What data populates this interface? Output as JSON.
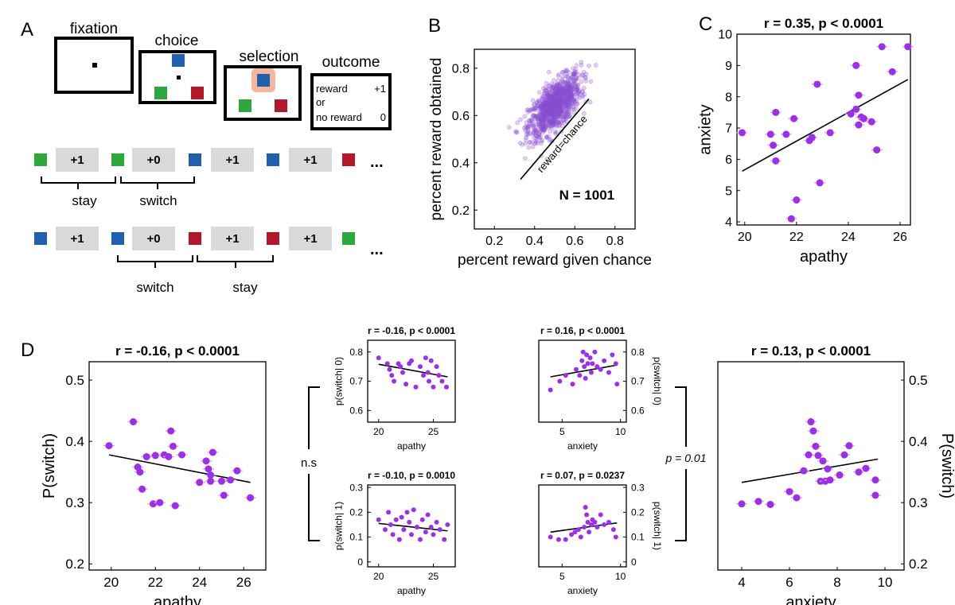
{
  "colors": {
    "point": "#9b30e8",
    "cloud": "#8a4fd0",
    "blue": "#1f5fae",
    "green": "#2ea83a",
    "red": "#b3172a",
    "highlight": "#f4b79c",
    "gray": "#d9d9d9"
  },
  "panelA": {
    "letter": "A",
    "titles": {
      "fixation": "fixation",
      "choice": "choice",
      "selection": "selection",
      "outcome": "outcome"
    },
    "outcome_lines": {
      "reward": "reward",
      "plus1": "+1",
      "or": "or",
      "no_reward": "no reward",
      "zero": "0"
    },
    "seq1": {
      "colors": [
        "green",
        "green",
        "blue",
        "blue",
        "red"
      ],
      "cells": [
        "+1",
        "+0",
        "+1",
        "+1"
      ],
      "braces": [
        "stay",
        "switch"
      ]
    },
    "seq2": {
      "colors": [
        "blue",
        "blue",
        "red",
        "red",
        "green"
      ],
      "cells": [
        "+1",
        "+0",
        "+1",
        "+1"
      ],
      "braces": [
        "switch",
        "stay"
      ]
    },
    "ellipsis": "..."
  },
  "panelB": {
    "letter": "B"
  },
  "panelC": {
    "letter": "C"
  },
  "panelD": {
    "letter": "D",
    "ns": "n.s",
    "p_label": "p = 0.01"
  },
  "chart_data": [
    {
      "id": "B",
      "type": "scatter",
      "title": "",
      "xlabel": "percent reward given chance",
      "ylabel": "percent reward obtained",
      "xlim": [
        0.1,
        0.9
      ],
      "ylim": [
        0.12,
        0.88
      ],
      "xticks": [
        "0.2",
        "0.4",
        "0.6",
        "0.8"
      ],
      "yticks": [
        "0.2",
        "0.4",
        "0.6",
        "0.8"
      ],
      "n_points": 1001,
      "cloud_center": [
        0.5,
        0.64
      ],
      "cloud_sd": [
        0.065,
        0.065
      ],
      "cloud_corr": 0.65,
      "chance_line": [
        [
          0.33,
          0.33
        ],
        [
          0.67,
          0.67
        ]
      ],
      "line_label": "reward=chance",
      "annotation": "N = 1001"
    },
    {
      "id": "C",
      "type": "scatter",
      "title": "r = 0.35, p < 0.0001",
      "xlabel": "apathy",
      "ylabel": "anxiety",
      "xlim": [
        19.7,
        26.4
      ],
      "ylim": [
        3.9,
        10
      ],
      "xticks": [
        "20",
        "22",
        "24",
        "26"
      ],
      "yticks": [
        "4",
        "5",
        "6",
        "7",
        "8",
        "9",
        "10"
      ],
      "points": [
        [
          19.9,
          6.85
        ],
        [
          21.0,
          6.8
        ],
        [
          21.1,
          6.45
        ],
        [
          21.2,
          5.95
        ],
        [
          21.2,
          7.5
        ],
        [
          21.6,
          6.8
        ],
        [
          21.8,
          4.1
        ],
        [
          21.9,
          7.3
        ],
        [
          22.0,
          4.7
        ],
        [
          22.5,
          6.6
        ],
        [
          22.6,
          6.7
        ],
        [
          22.8,
          8.4
        ],
        [
          22.9,
          5.25
        ],
        [
          23.3,
          6.85
        ],
        [
          24.1,
          7.45
        ],
        [
          24.3,
          9.0
        ],
        [
          24.3,
          7.6
        ],
        [
          24.4,
          8.05
        ],
        [
          24.4,
          7.1
        ],
        [
          24.5,
          7.35
        ],
        [
          24.6,
          7.3
        ],
        [
          24.9,
          7.2
        ],
        [
          25.1,
          6.3
        ],
        [
          25.3,
          9.6
        ],
        [
          25.7,
          8.8
        ],
        [
          26.3,
          9.6
        ]
      ],
      "fit": [
        [
          19.9,
          5.62
        ],
        [
          26.3,
          8.55
        ]
      ]
    },
    {
      "id": "D1",
      "type": "scatter",
      "title": "r = -0.16, p < 0.0001",
      "xlabel": "apathy",
      "ylabel": "P(switch)",
      "xlim": [
        19,
        27
      ],
      "ylim": [
        0.19,
        0.53
      ],
      "xticks": [
        "20",
        "22",
        "24",
        "26"
      ],
      "yticks": [
        "0.2",
        "0.3",
        "0.4",
        "0.5"
      ],
      "points": [
        [
          19.9,
          0.393
        ],
        [
          21.0,
          0.432
        ],
        [
          21.2,
          0.358
        ],
        [
          21.3,
          0.35
        ],
        [
          21.4,
          0.322
        ],
        [
          21.6,
          0.375
        ],
        [
          21.9,
          0.298
        ],
        [
          22.0,
          0.377
        ],
        [
          22.2,
          0.3
        ],
        [
          22.4,
          0.378
        ],
        [
          22.6,
          0.375
        ],
        [
          22.7,
          0.417
        ],
        [
          22.8,
          0.392
        ],
        [
          22.9,
          0.295
        ],
        [
          23.2,
          0.378
        ],
        [
          24.0,
          0.333
        ],
        [
          24.3,
          0.368
        ],
        [
          24.4,
          0.355
        ],
        [
          24.5,
          0.345
        ],
        [
          24.5,
          0.335
        ],
        [
          24.6,
          0.382
        ],
        [
          25.0,
          0.335
        ],
        [
          25.1,
          0.312
        ],
        [
          25.4,
          0.337
        ],
        [
          25.7,
          0.352
        ],
        [
          26.3,
          0.308
        ]
      ],
      "fit": [
        [
          19.9,
          0.378
        ],
        [
          26.3,
          0.333
        ]
      ]
    },
    {
      "id": "D2",
      "type": "scatter",
      "title": "r = -0.16, p < 0.0001",
      "xlabel": "apathy",
      "ylabel": "p(switch| 0)",
      "xlim": [
        19,
        27
      ],
      "ylim": [
        0.56,
        0.84
      ],
      "xticks": [
        "20",
        "25"
      ],
      "yticks": [
        "0.6",
        "0.7",
        "0.8"
      ],
      "points": [
        [
          20.0,
          0.78
        ],
        [
          20.8,
          0.76
        ],
        [
          21.0,
          0.74
        ],
        [
          21.2,
          0.72
        ],
        [
          21.4,
          0.7
        ],
        [
          21.8,
          0.76
        ],
        [
          22.0,
          0.75
        ],
        [
          22.2,
          0.73
        ],
        [
          22.5,
          0.69
        ],
        [
          22.8,
          0.76
        ],
        [
          23.0,
          0.77
        ],
        [
          23.4,
          0.68
        ],
        [
          23.8,
          0.75
        ],
        [
          24.1,
          0.72
        ],
        [
          24.3,
          0.78
        ],
        [
          24.5,
          0.73
        ],
        [
          24.6,
          0.7
        ],
        [
          24.8,
          0.77
        ],
        [
          25.0,
          0.68
        ],
        [
          25.3,
          0.75
        ],
        [
          25.5,
          0.72
        ],
        [
          25.8,
          0.7
        ],
        [
          26.2,
          0.68
        ]
      ],
      "fit": [
        [
          20.0,
          0.758
        ],
        [
          26.3,
          0.715
        ]
      ]
    },
    {
      "id": "D3",
      "type": "scatter",
      "title": "r = -0.10, p = 0.0010",
      "xlabel": "apathy",
      "ylabel": "p(switch| 1)",
      "xlim": [
        19,
        27
      ],
      "ylim": [
        -0.02,
        0.31
      ],
      "xticks": [
        "20",
        "25"
      ],
      "yticks": [
        "0",
        "0.1",
        "0.2",
        "0.3"
      ],
      "points": [
        [
          20.0,
          0.17
        ],
        [
          20.6,
          0.13
        ],
        [
          20.9,
          0.2
        ],
        [
          21.1,
          0.15
        ],
        [
          21.3,
          0.11
        ],
        [
          21.6,
          0.17
        ],
        [
          21.9,
          0.09
        ],
        [
          22.1,
          0.18
        ],
        [
          22.3,
          0.13
        ],
        [
          22.6,
          0.2
        ],
        [
          22.8,
          0.16
        ],
        [
          23.0,
          0.11
        ],
        [
          23.2,
          0.21
        ],
        [
          23.5,
          0.14
        ],
        [
          23.8,
          0.09
        ],
        [
          24.0,
          0.17
        ],
        [
          24.3,
          0.12
        ],
        [
          24.5,
          0.19
        ],
        [
          24.8,
          0.14
        ],
        [
          25.0,
          0.11
        ],
        [
          25.3,
          0.16
        ],
        [
          25.6,
          0.13
        ],
        [
          26.0,
          0.09
        ],
        [
          26.3,
          0.15
        ]
      ],
      "fit": [
        [
          20.0,
          0.155
        ],
        [
          26.3,
          0.125
        ]
      ]
    },
    {
      "id": "D4",
      "type": "scatter",
      "title": "r = 0.16, p < 0.0001",
      "xlabel": "anxiety",
      "ylabel": "p(switch| 0)",
      "xlim": [
        3,
        10.5
      ],
      "ylim": [
        0.56,
        0.84
      ],
      "xticks": [
        "5",
        "10"
      ],
      "yticks": [
        "0.6",
        "0.7",
        "0.8"
      ],
      "points": [
        [
          4.0,
          0.67
        ],
        [
          4.8,
          0.7
        ],
        [
          5.3,
          0.72
        ],
        [
          5.9,
          0.69
        ],
        [
          6.2,
          0.74
        ],
        [
          6.5,
          0.72
        ],
        [
          6.7,
          0.77
        ],
        [
          6.8,
          0.8
        ],
        [
          6.9,
          0.75
        ],
        [
          7.0,
          0.71
        ],
        [
          7.1,
          0.79
        ],
        [
          7.2,
          0.76
        ],
        [
          7.4,
          0.78
        ],
        [
          7.5,
          0.73
        ],
        [
          7.6,
          0.76
        ],
        [
          7.8,
          0.8
        ],
        [
          8.0,
          0.75
        ],
        [
          8.3,
          0.74
        ],
        [
          8.6,
          0.77
        ],
        [
          9.0,
          0.73
        ],
        [
          9.3,
          0.79
        ],
        [
          9.6,
          0.76
        ],
        [
          9.7,
          0.69
        ]
      ],
      "fit": [
        [
          4.0,
          0.715
        ],
        [
          9.7,
          0.755
        ]
      ]
    },
    {
      "id": "D5",
      "type": "scatter",
      "title": "r = 0.07, p = 0.0237",
      "xlabel": "anxiety",
      "ylabel": "p(switch| 1)",
      "xlim": [
        3,
        10.5
      ],
      "ylim": [
        -0.02,
        0.31
      ],
      "xticks": [
        "5",
        "10"
      ],
      "yticks": [
        "0",
        "0.1",
        "0.2",
        "0.3"
      ],
      "points": [
        [
          4.0,
          0.1
        ],
        [
          4.7,
          0.09
        ],
        [
          5.3,
          0.09
        ],
        [
          5.8,
          0.11
        ],
        [
          6.1,
          0.12
        ],
        [
          6.4,
          0.13
        ],
        [
          6.6,
          0.1
        ],
        [
          6.9,
          0.14
        ],
        [
          7.0,
          0.22
        ],
        [
          7.1,
          0.19
        ],
        [
          7.2,
          0.16
        ],
        [
          7.3,
          0.12
        ],
        [
          7.5,
          0.15
        ],
        [
          7.6,
          0.17
        ],
        [
          7.8,
          0.16
        ],
        [
          8.0,
          0.14
        ],
        [
          8.3,
          0.19
        ],
        [
          8.6,
          0.15
        ],
        [
          9.0,
          0.16
        ],
        [
          9.4,
          0.13
        ],
        [
          9.6,
          0.1
        ]
      ],
      "fit": [
        [
          4.0,
          0.12
        ],
        [
          9.7,
          0.157
        ]
      ]
    },
    {
      "id": "D6",
      "type": "scatter",
      "title": "r = 0.13, p < 0.0001",
      "xlabel": "anxiety",
      "ylabel": "P(switch)",
      "xlim": [
        3,
        10.8
      ],
      "ylim": [
        0.19,
        0.53
      ],
      "xticks": [
        "4",
        "6",
        "8",
        "10"
      ],
      "yticks": [
        "0.2",
        "0.3",
        "0.4",
        "0.5"
      ],
      "points": [
        [
          4.0,
          0.298
        ],
        [
          4.7,
          0.302
        ],
        [
          5.2,
          0.297
        ],
        [
          6.0,
          0.318
        ],
        [
          6.3,
          0.308
        ],
        [
          6.6,
          0.352
        ],
        [
          6.8,
          0.378
        ],
        [
          6.9,
          0.432
        ],
        [
          7.0,
          0.417
        ],
        [
          7.1,
          0.392
        ],
        [
          7.2,
          0.377
        ],
        [
          7.3,
          0.335
        ],
        [
          7.4,
          0.368
        ],
        [
          7.5,
          0.335
        ],
        [
          7.6,
          0.355
        ],
        [
          7.7,
          0.337
        ],
        [
          8.1,
          0.345
        ],
        [
          8.3,
          0.378
        ],
        [
          8.5,
          0.393
        ],
        [
          8.9,
          0.35
        ],
        [
          9.2,
          0.356
        ],
        [
          9.6,
          0.312
        ],
        [
          9.6,
          0.337
        ]
      ],
      "fit": [
        [
          4.0,
          0.333
        ],
        [
          9.7,
          0.371
        ]
      ]
    }
  ]
}
